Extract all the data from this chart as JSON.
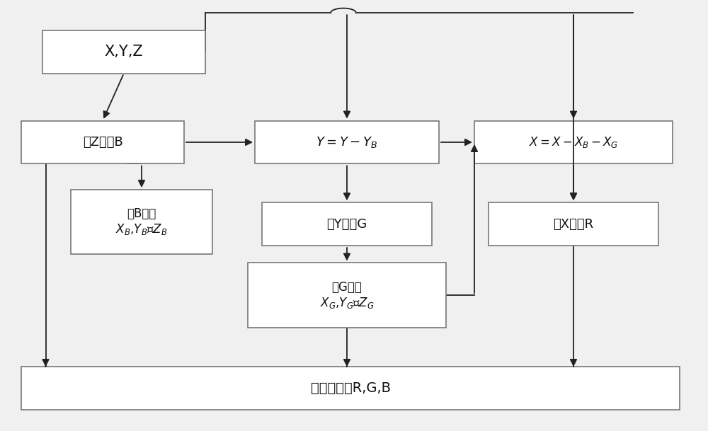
{
  "bg_color": "#f0f0f0",
  "box_color": "#ffffff",
  "box_edge_color": "#777777",
  "arrow_color": "#222222",
  "text_color": "#111111",
  "positions": {
    "XYZ": [
      0.06,
      0.83,
      0.23,
      0.1
    ],
    "findB": [
      0.03,
      0.62,
      0.23,
      0.1
    ],
    "findBxyz": [
      0.1,
      0.41,
      0.2,
      0.15
    ],
    "YYB": [
      0.36,
      0.62,
      0.26,
      0.1
    ],
    "findG": [
      0.37,
      0.43,
      0.24,
      0.1
    ],
    "findGxyz": [
      0.35,
      0.24,
      0.28,
      0.15
    ],
    "XXbg": [
      0.67,
      0.62,
      0.28,
      0.1
    ],
    "findR": [
      0.69,
      0.43,
      0.24,
      0.1
    ],
    "result": [
      0.03,
      0.05,
      0.93,
      0.1
    ]
  },
  "fontsizes": {
    "XYZ": 15,
    "findB": 13,
    "findBxyz": 12,
    "YYB": 13,
    "findG": 13,
    "findGxyz": 12,
    "XXbg": 12,
    "findR": 13,
    "result": 14
  }
}
